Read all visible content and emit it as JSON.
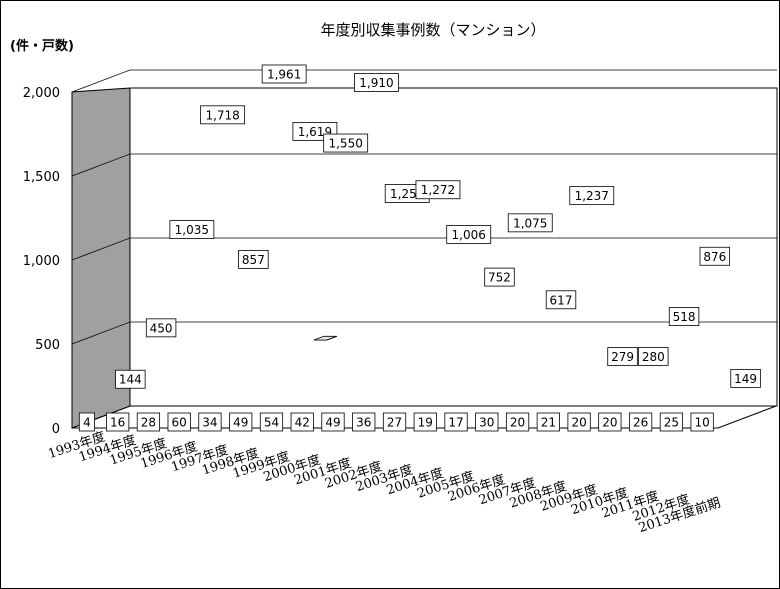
{
  "chart_data": {
    "type": "bar",
    "title": "年度別収集事例数（マンション）",
    "unit_label": "(件・戸数)",
    "categories": [
      "1993年度",
      "1994年度",
      "1995年度",
      "1996年度",
      "1997年度",
      "1998年度",
      "1999年度",
      "2000年度",
      "2001年度",
      "2002年度",
      "2003年度",
      "2004年度",
      "2005年度",
      "2006年度",
      "2007年度",
      "2008年度",
      "2009年度",
      "2010年度",
      "2011年度",
      "2012年度",
      "2013年度前期"
    ],
    "series": [
      {
        "name": "",
        "values": [
          144,
          450,
          1035,
          1718,
          857,
          1961,
          1619,
          1550,
          1910,
          1250,
          1272,
          1006,
          752,
          1075,
          617,
          1237,
          279,
          280,
          518,
          876,
          149
        ]
      },
      {
        "name": "",
        "values": [
          4,
          16,
          28,
          60,
          34,
          49,
          54,
          42,
          49,
          36,
          27,
          19,
          17,
          30,
          20,
          21,
          20,
          20,
          26,
          25,
          10
        ]
      }
    ],
    "value_labels": [
      [
        "144",
        "450",
        "1,035",
        "1,718",
        "857",
        "1,961",
        "1,619",
        "1,550",
        "1,910",
        "1,250",
        "1,272",
        "1,006",
        "752",
        "1,075",
        "617",
        "1,237",
        "279",
        "280",
        "518",
        "876",
        "149"
      ],
      [
        "4",
        "16",
        "28",
        "60",
        "34",
        "49",
        "54",
        "42",
        "49",
        "36",
        "27",
        "19",
        "17",
        "30",
        "20",
        "21",
        "20",
        "20",
        "26",
        "25",
        "10"
      ]
    ],
    "yticks": [
      "0",
      "500",
      "1,000",
      "1,500",
      "2,000"
    ],
    "ylim": [
      0,
      2000
    ],
    "grid": true,
    "style": "3d-clustered-bar"
  },
  "colors": {
    "front_bar": "#c0c0c0",
    "back_bar": "#6e6e6e",
    "wall": "#a0a0a0",
    "floor": "#ffffff",
    "grid": "#000000"
  }
}
